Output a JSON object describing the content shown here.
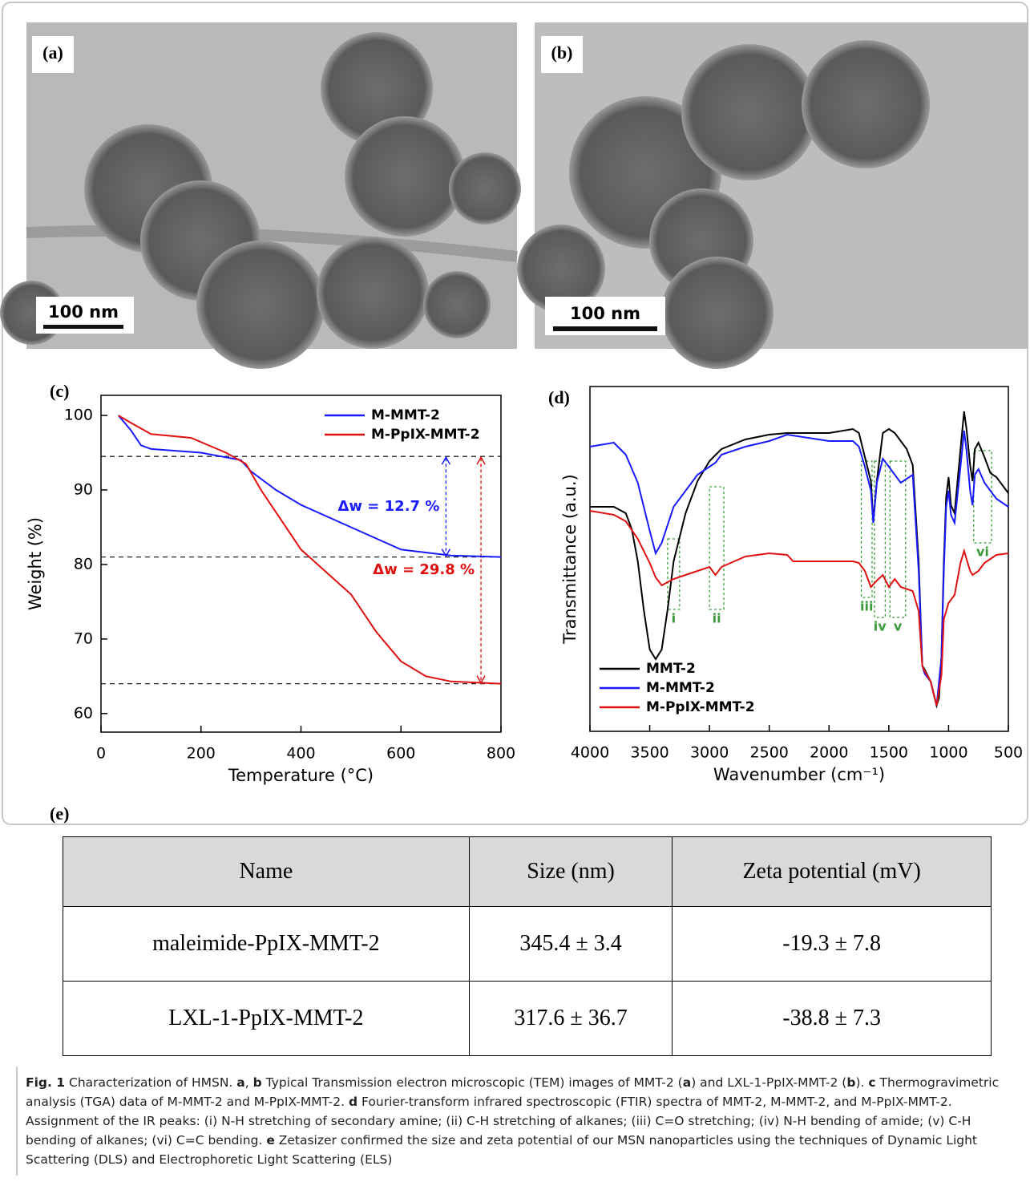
{
  "images": [
    {
      "panel_label": "(a)",
      "scale_bar": "100 nm"
    },
    {
      "panel_label": "(b)",
      "scale_bar": "100 nm"
    }
  ],
  "chart_data": [
    {
      "type": "line",
      "panel_label": "(c)",
      "x_label": "Temperature (°C)",
      "y_label": "Weight (%)",
      "xlim": [
        0,
        800
      ],
      "xticks": [
        0,
        200,
        400,
        600,
        800
      ],
      "ylim": [
        57.5,
        102.7
      ],
      "yticks": [
        60,
        70,
        80,
        90,
        100
      ],
      "legend": "upper right",
      "series": [
        {
          "name": "M-MMT-2",
          "color": "#1a1aff",
          "x": [
            35,
            60,
            80,
            100,
            200,
            280,
            300,
            350,
            400,
            500,
            600,
            700,
            800
          ],
          "values": [
            100,
            98,
            96,
            95.5,
            95,
            94,
            92.5,
            90,
            88,
            85,
            82,
            81.2,
            81
          ]
        },
        {
          "name": "M-PpIX-MMT-2",
          "color": "#e01010",
          "x": [
            35,
            60,
            100,
            180,
            250,
            290,
            320,
            360,
            400,
            450,
            500,
            550,
            600,
            650,
            700,
            800
          ],
          "values": [
            100,
            99,
            97.5,
            97,
            95,
            93.5,
            90,
            86,
            82,
            79,
            76,
            71,
            67,
            65,
            64.3,
            64
          ]
        }
      ],
      "reference_lines": [
        94.5,
        81,
        64
      ],
      "annotations": [
        {
          "text": "Δw = 12.7 %",
          "color": "#1a1aff"
        },
        {
          "text": "Δw = 29.8 %",
          "color": "#e01010"
        }
      ]
    },
    {
      "type": "line",
      "panel_label": "(d)",
      "x_label": "Wavenumber (cm⁻¹)",
      "y_label": "Transmittance (a.u.)",
      "xlim": [
        4000,
        500
      ],
      "xticks": [
        4000,
        3500,
        3000,
        2500,
        2000,
        1500,
        1000,
        500
      ],
      "ylim": [
        0,
        430
      ],
      "legend": "lower left",
      "series": [
        {
          "name": "MMT-2",
          "color": "#000000",
          "x": [
            4000,
            3800,
            3700,
            3650,
            3600,
            3550,
            3500,
            3450,
            3400,
            3350,
            3300,
            3200,
            3100,
            3000,
            2900,
            2700,
            2500,
            2350,
            2000,
            1800,
            1750,
            1700,
            1650,
            1630,
            1600,
            1550,
            1500,
            1450,
            1350,
            1300,
            1250,
            1220,
            1200,
            1150,
            1100,
            1080,
            1060,
            1040,
            1020,
            1000,
            980,
            950,
            900,
            870,
            850,
            820,
            800,
            780,
            750,
            700,
            650,
            600,
            500
          ],
          "values": [
            280,
            280,
            272,
            252,
            212,
            152,
            102,
            90,
            102,
            152,
            212,
            272,
            312,
            337,
            352,
            364,
            370,
            372,
            372,
            377,
            372,
            342,
            312,
            262,
            312,
            372,
            377,
            372,
            352,
            332,
            212,
            82,
            77,
            62,
            32,
            42,
            92,
            212,
            292,
            317,
            282,
            272,
            352,
            399,
            377,
            332,
            312,
            352,
            360,
            342,
            322,
            317,
            297
          ]
        },
        {
          "name": "M-MMT-2",
          "color": "#1a1aff",
          "x": [
            4000,
            3800,
            3700,
            3600,
            3500,
            3450,
            3400,
            3300,
            3100,
            3000,
            2950,
            2900,
            2700,
            2500,
            2350,
            2000,
            1800,
            1750,
            1700,
            1650,
            1630,
            1600,
            1550,
            1500,
            1450,
            1400,
            1300,
            1250,
            1220,
            1200,
            1150,
            1100,
            1060,
            1040,
            1020,
            1000,
            980,
            950,
            900,
            870,
            850,
            820,
            800,
            780,
            750,
            700,
            650,
            600,
            500
          ],
          "values": [
            355,
            360,
            345,
            310,
            250,
            222,
            235,
            280,
            320,
            330,
            335,
            345,
            355,
            362,
            370,
            362,
            362,
            355,
            330,
            300,
            260,
            310,
            340,
            330,
            320,
            310,
            320,
            200,
            82,
            72,
            62,
            32,
            92,
            200,
            280,
            300,
            270,
            260,
            330,
            375,
            350,
            300,
            282,
            320,
            327,
            310,
            300,
            290,
            280
          ]
        },
        {
          "name": "M-PpIX-MMT-2",
          "color": "#e01010",
          "x": [
            4000,
            3800,
            3700,
            3600,
            3500,
            3450,
            3400,
            3300,
            3200,
            3100,
            3000,
            2950,
            2900,
            2700,
            2500,
            2350,
            2300,
            2000,
            1800,
            1750,
            1700,
            1650,
            1600,
            1550,
            1500,
            1450,
            1400,
            1300,
            1250,
            1220,
            1200,
            1150,
            1100,
            1060,
            1040,
            1000,
            950,
            900,
            870,
            850,
            820,
            800,
            750,
            700,
            650,
            600,
            500
          ],
          "values": [
            275,
            270,
            262,
            240,
            210,
            192,
            182,
            190,
            195,
            200,
            205,
            195,
            205,
            218,
            222,
            220,
            212,
            212,
            212,
            210,
            200,
            180,
            188,
            195,
            180,
            190,
            180,
            175,
            150,
            82,
            75,
            62,
            32,
            70,
            140,
            160,
            170,
            210,
            225,
            215,
            200,
            195,
            200,
            210,
            215,
            220,
            222
          ]
        }
      ],
      "bands": [
        {
          "label": "i",
          "range": [
            3350,
            3250
          ]
        },
        {
          "label": "ii",
          "range": [
            3000,
            2880
          ]
        },
        {
          "label": "iii",
          "range": [
            1730,
            1640
          ]
        },
        {
          "label": "iv",
          "range": [
            1620,
            1530
          ]
        },
        {
          "label": "v",
          "range": [
            1490,
            1360
          ]
        },
        {
          "label": "vi",
          "range": [
            790,
            640
          ]
        }
      ]
    }
  ],
  "table": {
    "panel_label": "(e)",
    "header": [
      "Name",
      "Size (nm)",
      "Zeta potential (mV)"
    ],
    "rows": [
      [
        "maleimide-PpIX-MMT-2",
        "345.4 ± 3.4",
        "-19.3 ± 7.8"
      ],
      [
        "LXL-1-PpIX-MMT-2",
        "317.6 ± 36.7",
        "-38.8 ± 7.3"
      ]
    ]
  },
  "caption": {
    "label": "Fig. 1",
    "parts": [
      " Characterization of HMSN. ",
      "a",
      ", ",
      "b",
      " Typical Transmission electron microscopic (TEM) images of MMT-2 (",
      "a",
      ") and LXL-1-PpIX-MMT-2 (",
      "b",
      "). ",
      "c",
      " Thermogravimetric analysis (TGA) data of M-MMT-2 and M-PpIX-MMT-2. ",
      "d",
      " Fourier-transform infrared spectroscopic (FTIR) spectra of MMT-2, M-MMT-2, and M-PpIX-MMT-2. Assignment of the IR peaks: (i) N-H stretching of secondary amine; (ii) C-H stretching of alkanes; (iii) C=O stretching; (iv) N-H bending of amide; (v) C-H bending of alkanes; (vi) C=C bending. ",
      "e",
      " Zetasizer confirmed the size and zeta potential of our MSN nanoparticles using the techniques of Dynamic Light Scattering (DLS) and Electrophoretic Light Scattering (ELS)"
    ]
  }
}
